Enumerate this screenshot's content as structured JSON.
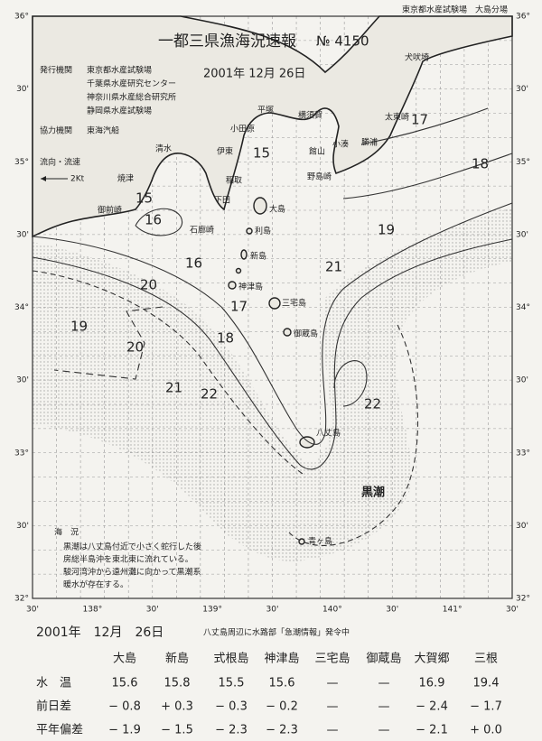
{
  "header": {
    "agency_note": "東京都水産試験場　大島分場",
    "title": "一都三県漁海況速報",
    "number": "№ 4150",
    "date": "2001年 12月 26日"
  },
  "issuers": {
    "label": "発行機関",
    "items": [
      "東京都水産試験場",
      "千葉県水産研究センター",
      "神奈川県水産総合研究所",
      "静岡県水産試験場"
    ],
    "cooperator_label": "協力機関",
    "cooperator": "東海汽船"
  },
  "flow_legend": {
    "label": "流向・流速",
    "speed": "2Kt"
  },
  "lat_labels": [
    "36°",
    "30'",
    "35°",
    "30'",
    "34°",
    "30'",
    "33°",
    "30'",
    "32°"
  ],
  "lon_labels": [
    "30'",
    "138°",
    "30'",
    "139°",
    "30'",
    "140°",
    "30'",
    "141°",
    "30'"
  ],
  "isotherms": [
    "17",
    "18",
    "15",
    "15",
    "16",
    "16",
    "19",
    "21",
    "20",
    "17",
    "19",
    "20",
    "18",
    "21",
    "22",
    "22"
  ],
  "places": [
    "犬吠埼",
    "太東崎",
    "勝浦",
    "小湊",
    "館山",
    "野島崎",
    "横須賀",
    "平塚",
    "小田原",
    "伊東",
    "稲取",
    "下田",
    "石廊崎",
    "御前崎",
    "焼津",
    "清水",
    "大島",
    "利島",
    "新島",
    "神津島",
    "三宅島",
    "御蔵島",
    "八丈島",
    "青ヶ島"
  ],
  "kuroshio": "黒潮",
  "notes": {
    "title": "海　況",
    "lines": [
      "黒潮は八丈島付近で小さく蛇行した後",
      "房総半島沖を東北東に流れている。",
      "駿河湾沖から遠州灘に向かって黒潮系",
      "暖水が存在する。"
    ]
  },
  "footer": {
    "date": "2001年　12月　26日",
    "notice": "八丈島周辺に水路部「急潮情報」発令中"
  },
  "table": {
    "columns": [
      "大島",
      "新島",
      "式根島",
      "神津島",
      "三宅島",
      "御蔵島",
      "大賀郷",
      "三根"
    ],
    "rows": [
      {
        "label": "水　温",
        "cells": [
          "15.6",
          "15.8",
          "15.5",
          "15.6",
          "—",
          "—",
          "16.9",
          "19.4"
        ]
      },
      {
        "label": "前日差",
        "cells": [
          "− 0.8",
          "+ 0.3",
          "− 0.3",
          "− 0.2",
          "—",
          "—",
          "− 2.4",
          "− 1.7"
        ]
      },
      {
        "label": "平年偏差",
        "cells": [
          "− 1.9",
          "− 1.5",
          "− 2.3",
          "− 2.3",
          "—",
          "—",
          "− 2.1",
          "+ 0.0"
        ]
      }
    ]
  }
}
